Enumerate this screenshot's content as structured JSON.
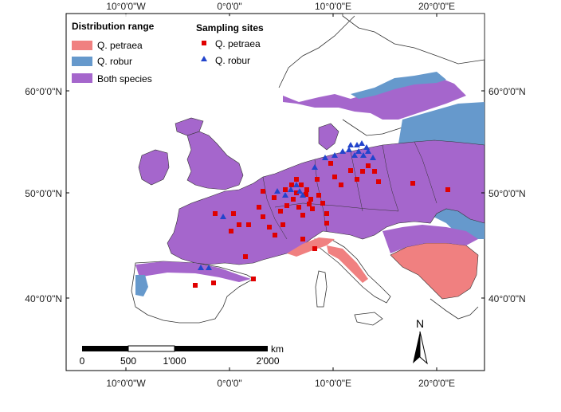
{
  "map": {
    "x_ticks_top": [
      "10°0'0\"W",
      "0°0'0\"",
      "10°0'0\"E",
      "20°0'0\"E"
    ],
    "x_ticks_bottom": [
      "10°0'0\"W",
      "0°0'0\"",
      "10°0'0\"E",
      "20°0'0\"E"
    ],
    "y_ticks_left": [
      "60°0'0\"N",
      "50°0'0\"N",
      "40°0'0\"N"
    ],
    "y_ticks_right": [
      "60°0'0\"N",
      "50°0'0\"N",
      "40°0'0\"N"
    ]
  },
  "legend_distribution": {
    "title": "Distribution range",
    "items": [
      {
        "label": "Q. petraea",
        "color": "#f08080"
      },
      {
        "label": "Q. robur",
        "color": "#6699cc"
      },
      {
        "label": "Both species",
        "color": "#a566cc"
      }
    ]
  },
  "legend_sampling": {
    "title": "Sampling sites",
    "items": [
      {
        "label": "Q. petraea",
        "color": "#e00000",
        "shape": "square"
      },
      {
        "label": "Q. robur",
        "color": "#2244cc",
        "shape": "triangle"
      }
    ]
  },
  "scale_bar": {
    "labels": [
      "0",
      "500",
      "1'000",
      "2'000"
    ],
    "unit": "km"
  },
  "north_arrow": {
    "label": "N"
  },
  "colors": {
    "both": "#a566cc",
    "robur": "#6699cc",
    "petraea": "#f08080",
    "land_outline": "#333333"
  }
}
